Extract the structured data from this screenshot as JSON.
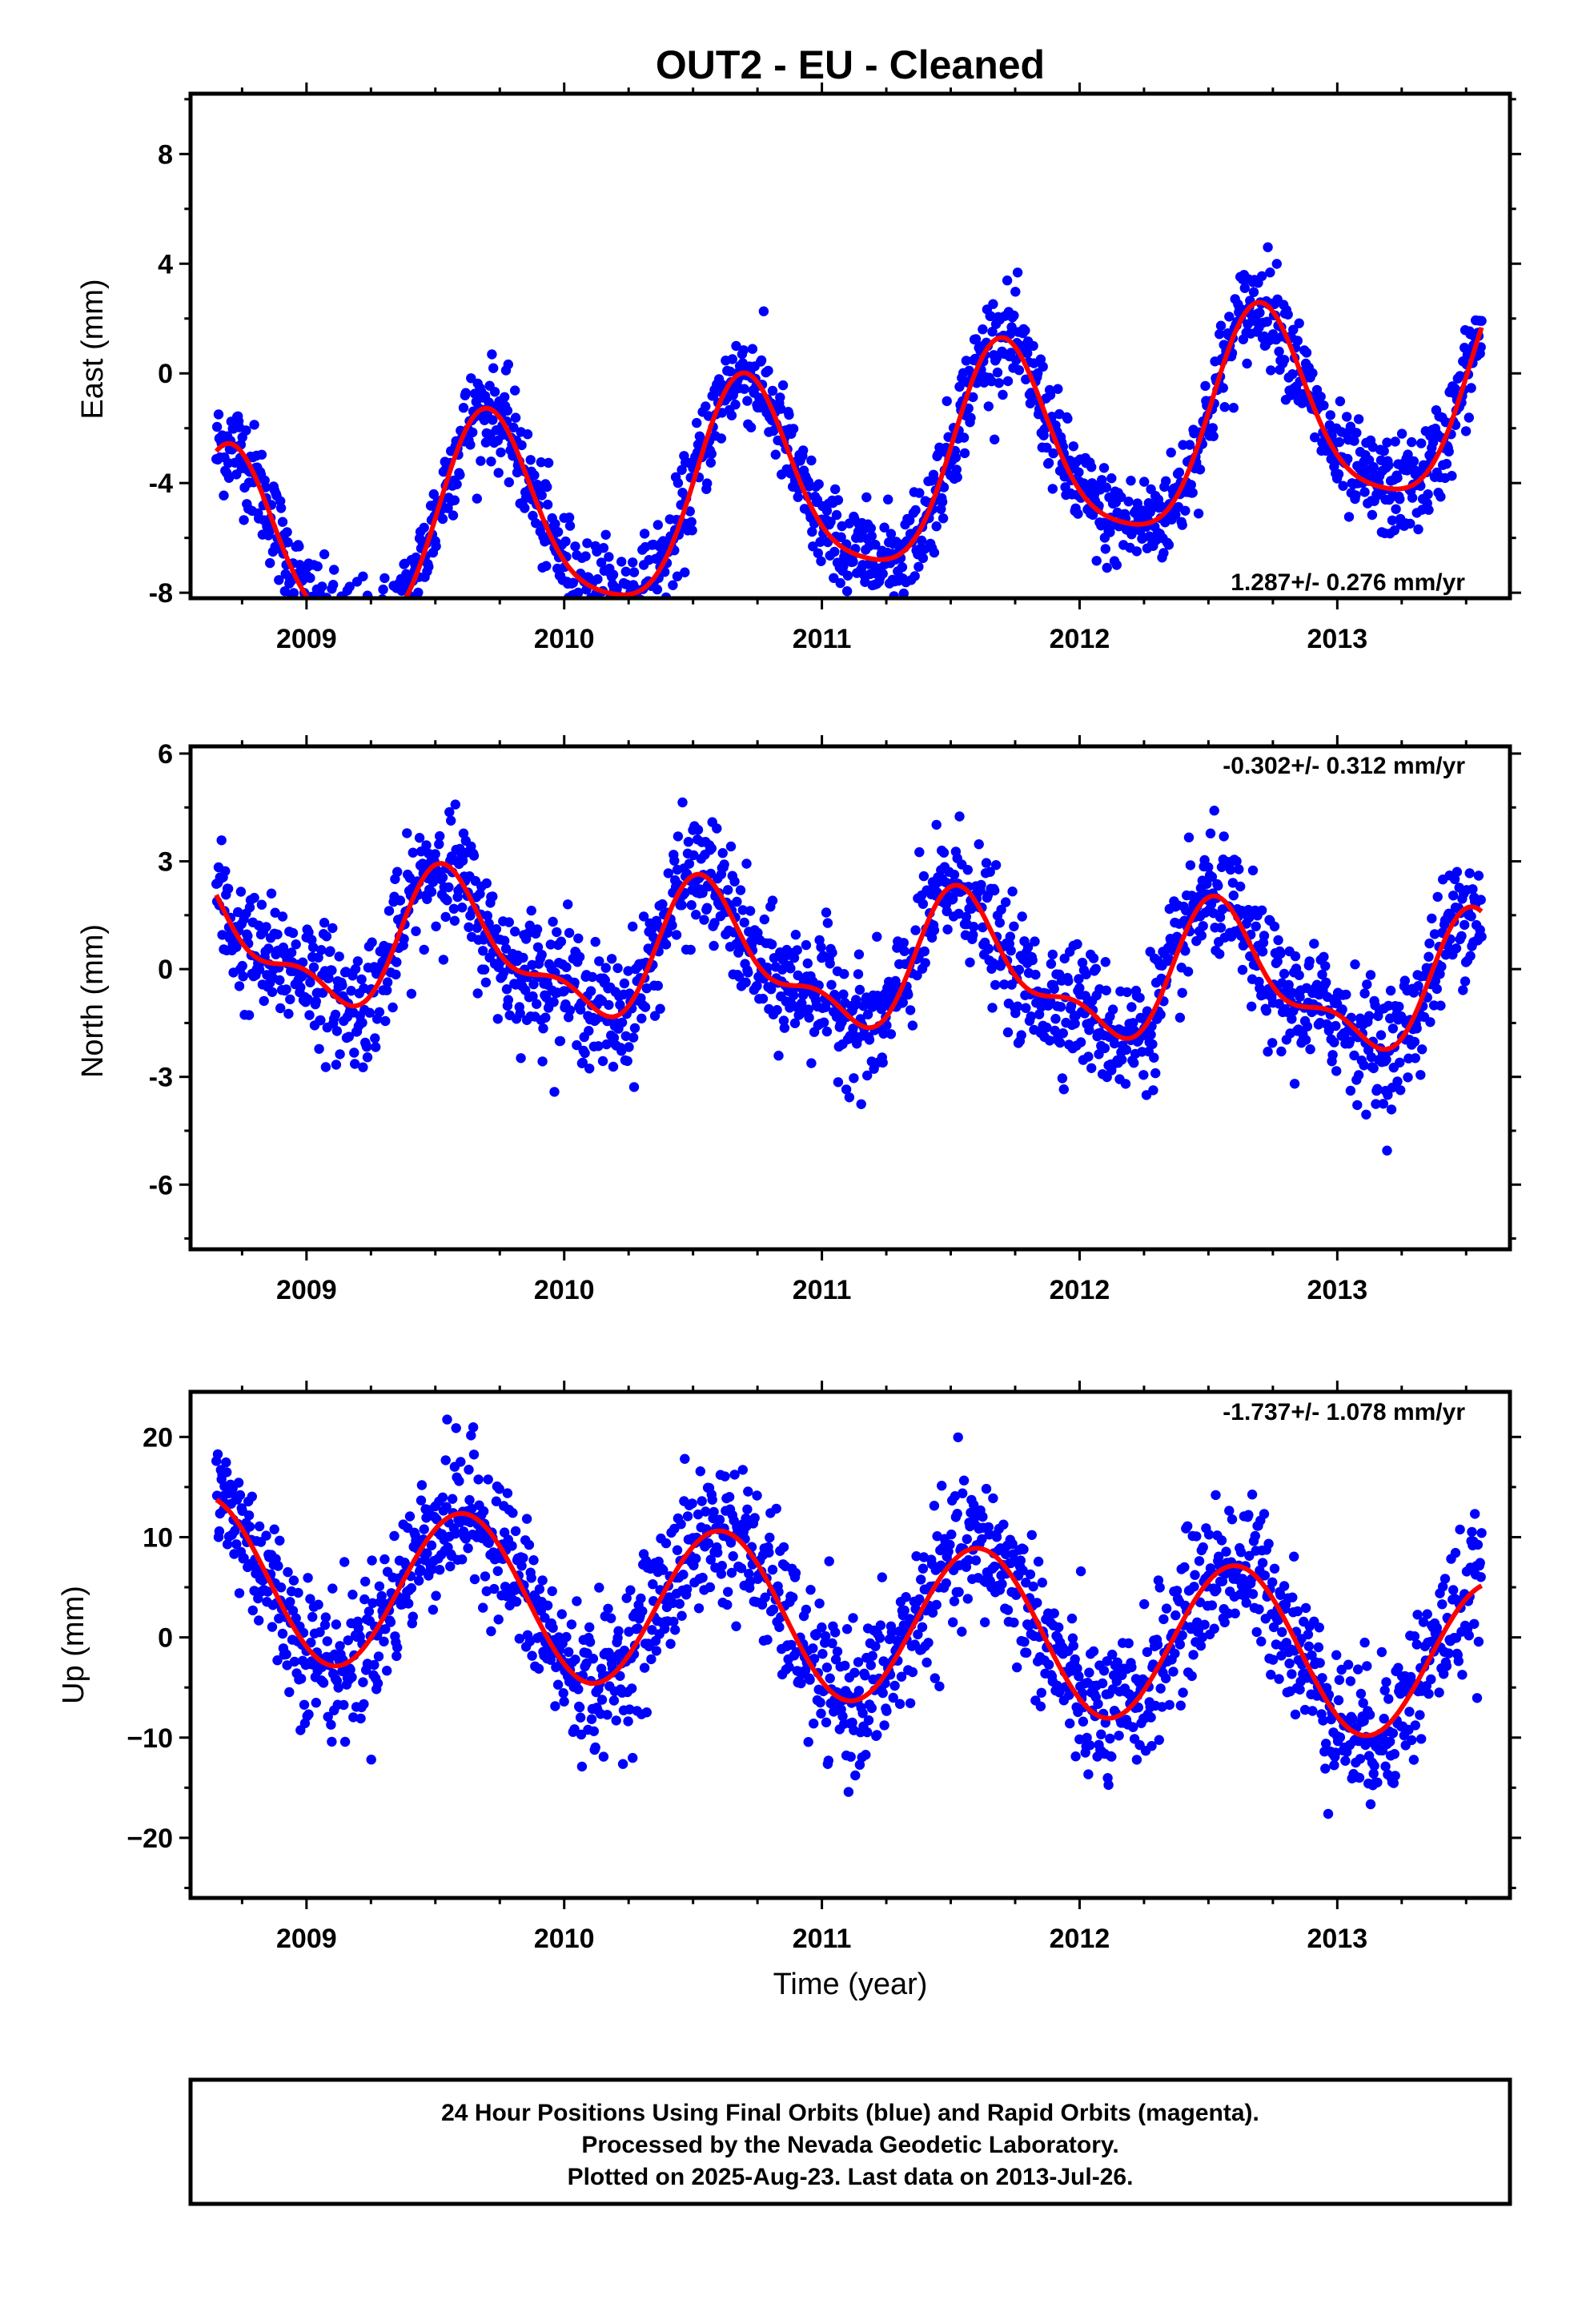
{
  "title": "OUT2  - EU - Cleaned",
  "xlabel": "Time (year)",
  "footer": {
    "line1": "24 Hour Positions Using Final Orbits (blue) and Rapid Orbits (magenta).",
    "line2": "Processed by the Nevada Geodetic Laboratory.",
    "line3": "Plotted on 2025-Aug-23. Last data on 2013-Jul-26."
  },
  "colors": {
    "points": "#0000ff",
    "fit": "#ff0000",
    "axes": "#000000"
  },
  "chart_data": [
    {
      "type": "scatter",
      "name": "east",
      "ylabel": "East (mm)",
      "rate_label": "1.287+/- 0.276 mm/yr",
      "rate_position": "bottom-right",
      "xlim": [
        2008.55,
        2013.67
      ],
      "ylim": [
        -8.2,
        10.2
      ],
      "xticks": [
        2009,
        2010,
        2011,
        2012,
        2013
      ],
      "xtick_labels": [
        "2009",
        "2010",
        "2011",
        "2012",
        "2013"
      ],
      "yticks": [
        -8,
        -4,
        0,
        4,
        8
      ],
      "ytick_labels": [
        "-8",
        "-4",
        "0",
        "4",
        "8"
      ],
      "x_range": [
        2008.65,
        2013.56
      ],
      "fit": {
        "offset": -4.0,
        "rate": 1.287,
        "annual_cos": -1.1,
        "annual_sin": -3.55,
        "semi_cos": -0.45,
        "semi_sin": 0.55
      },
      "scatter_sd": 0.9,
      "series": [
        {
          "name": "daily positions",
          "role": "points"
        },
        {
          "name": "model fit",
          "role": "line"
        }
      ]
    },
    {
      "type": "scatter",
      "name": "north",
      "ylabel": "North (mm)",
      "rate_label": "-0.302+/- 0.312 mm/yr",
      "rate_position": "top-right",
      "xlim": [
        2008.55,
        2013.67
      ],
      "ylim": [
        -7.8,
        6.2
      ],
      "xticks": [
        2009,
        2010,
        2011,
        2012,
        2013
      ],
      "xtick_labels": [
        "2009",
        "2010",
        "2011",
        "2012",
        "2013"
      ],
      "yticks": [
        -6,
        -3,
        0,
        3,
        6
      ],
      "ytick_labels": [
        "-6",
        "-3",
        "0",
        "3",
        "6"
      ],
      "x_range": [
        2008.65,
        2013.56
      ],
      "fit": {
        "offset": 0.15,
        "rate": -0.302,
        "annual_cos": -1.55,
        "annual_sin": -0.65,
        "semi_cos": 0.75,
        "semi_sin": 0.0
      },
      "scatter_sd": 0.85,
      "series": [
        {
          "name": "daily positions",
          "role": "points"
        },
        {
          "name": "model fit",
          "role": "line"
        }
      ]
    },
    {
      "type": "scatter",
      "name": "up",
      "ylabel": "Up (mm)",
      "rate_label": "-1.737+/- 1.078 mm/yr",
      "rate_position": "top-right",
      "xlim": [
        2008.55,
        2013.67
      ],
      "ylim": [
        -26,
        24.5
      ],
      "xticks": [
        2009,
        2010,
        2011,
        2012,
        2013
      ],
      "xtick_labels": [
        "2009",
        "2010",
        "2011",
        "2012",
        "2013"
      ],
      "yticks": [
        -20,
        -10,
        0,
        10,
        20
      ],
      "ytick_labels": [
        "−20",
        "−10",
        "0",
        "10",
        "20"
      ],
      "x_range": [
        2008.65,
        2013.56
      ],
      "fit": {
        "offset": 1.9,
        "rate": -1.737,
        "annual_cos": -6.3,
        "annual_sin": -5.0,
        "semi_cos": 0.0,
        "semi_sin": 0.0
      },
      "scatter_sd": 3.6,
      "series": [
        {
          "name": "daily positions",
          "role": "points"
        },
        {
          "name": "model fit",
          "role": "line"
        }
      ]
    }
  ]
}
